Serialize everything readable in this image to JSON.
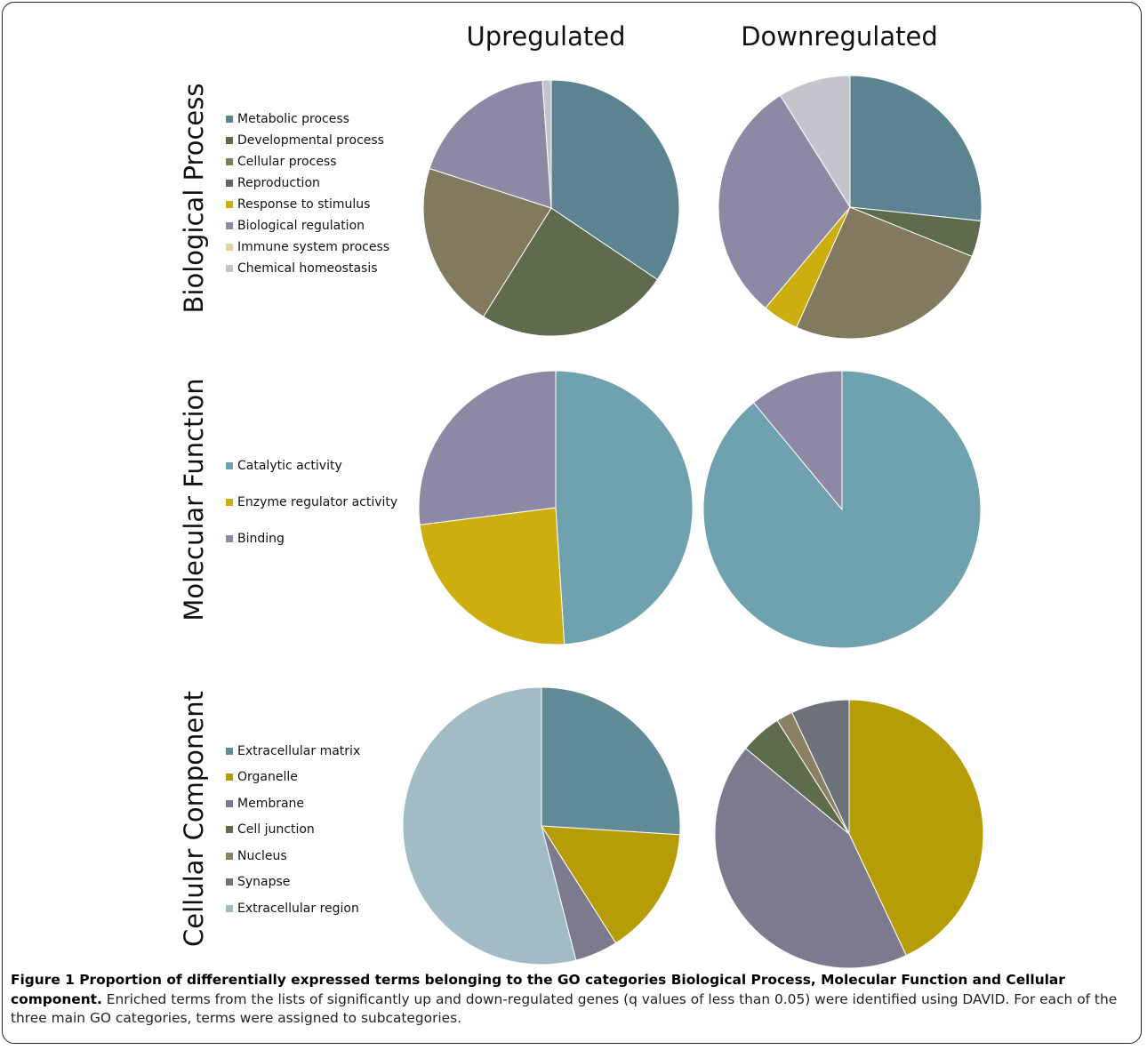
{
  "column_headers": [
    "Upregulated",
    "Downregulated"
  ],
  "caption": {
    "bold": "Figure 1 Proportion of differentially expressed terms belonging to the GO categories Biological Process, Molecular Function and Cellular component.",
    "text": " Enriched terms from the lists of significantly up and down-regulated genes (q values of less than 0.05) were identified using DAVID. For each of the three main GO categories, terms were assigned to subcategories."
  },
  "chart_data": [
    {
      "type": "pie",
      "row_title": "Biological Process",
      "legend": [
        {
          "name": "Metabolic process",
          "color": "#5b8390"
        },
        {
          "name": "Developmental process",
          "color": "#5f6b4d"
        },
        {
          "name": "Cellular process",
          "color": "#827a5e"
        },
        {
          "name": "Reproduction",
          "color": "#5f6670"
        },
        {
          "name": "Response to stimulus",
          "color": "#cdae0f"
        },
        {
          "name": "Biological regulation",
          "color": "#8d88a3"
        },
        {
          "name": "Immune system process",
          "color": "#e2d29f"
        },
        {
          "name": "Chemical homeostasis",
          "color": "#c5c4cc"
        }
      ],
      "pies": [
        {
          "column": "Upregulated",
          "values": [
            31,
            22,
            19,
            0,
            0,
            17,
            0,
            1
          ]
        },
        {
          "column": "Downregulated",
          "values": [
            24,
            4,
            23,
            0,
            4,
            27,
            0,
            8
          ]
        }
      ]
    },
    {
      "type": "pie",
      "row_title": "Molecular Function",
      "legend": [
        {
          "name": "Catalytic activity",
          "color": "#6fa1af"
        },
        {
          "name": "Enzyme regulator activity",
          "color": "#cdae0f"
        },
        {
          "name": "Binding",
          "color": "#8d88a3"
        }
      ],
      "pies": [
        {
          "column": "Upregulated",
          "values": [
            49,
            24,
            27
          ]
        },
        {
          "column": "Downregulated",
          "values": [
            89,
            0,
            11
          ]
        }
      ]
    },
    {
      "type": "pie",
      "row_title": "Cellular Component",
      "legend": [
        {
          "name": "Extracellular matrix",
          "color": "#618b97"
        },
        {
          "name": "Organelle",
          "color": "#b69d07"
        },
        {
          "name": "Membrane",
          "color": "#7e7a8e"
        },
        {
          "name": "Cell junction",
          "color": "#5f6b4d"
        },
        {
          "name": "Nucleus",
          "color": "#8b8062"
        },
        {
          "name": "Synapse",
          "color": "#6d727a"
        },
        {
          "name": "Extracellular region",
          "color": "#a2bcc6"
        }
      ],
      "pies": [
        {
          "column": "Upregulated",
          "values": [
            26,
            15,
            5,
            0,
            0,
            0,
            54
          ]
        },
        {
          "column": "Downregulated",
          "values": [
            0,
            43,
            43,
            5,
            2,
            7,
            0
          ]
        }
      ]
    }
  ]
}
